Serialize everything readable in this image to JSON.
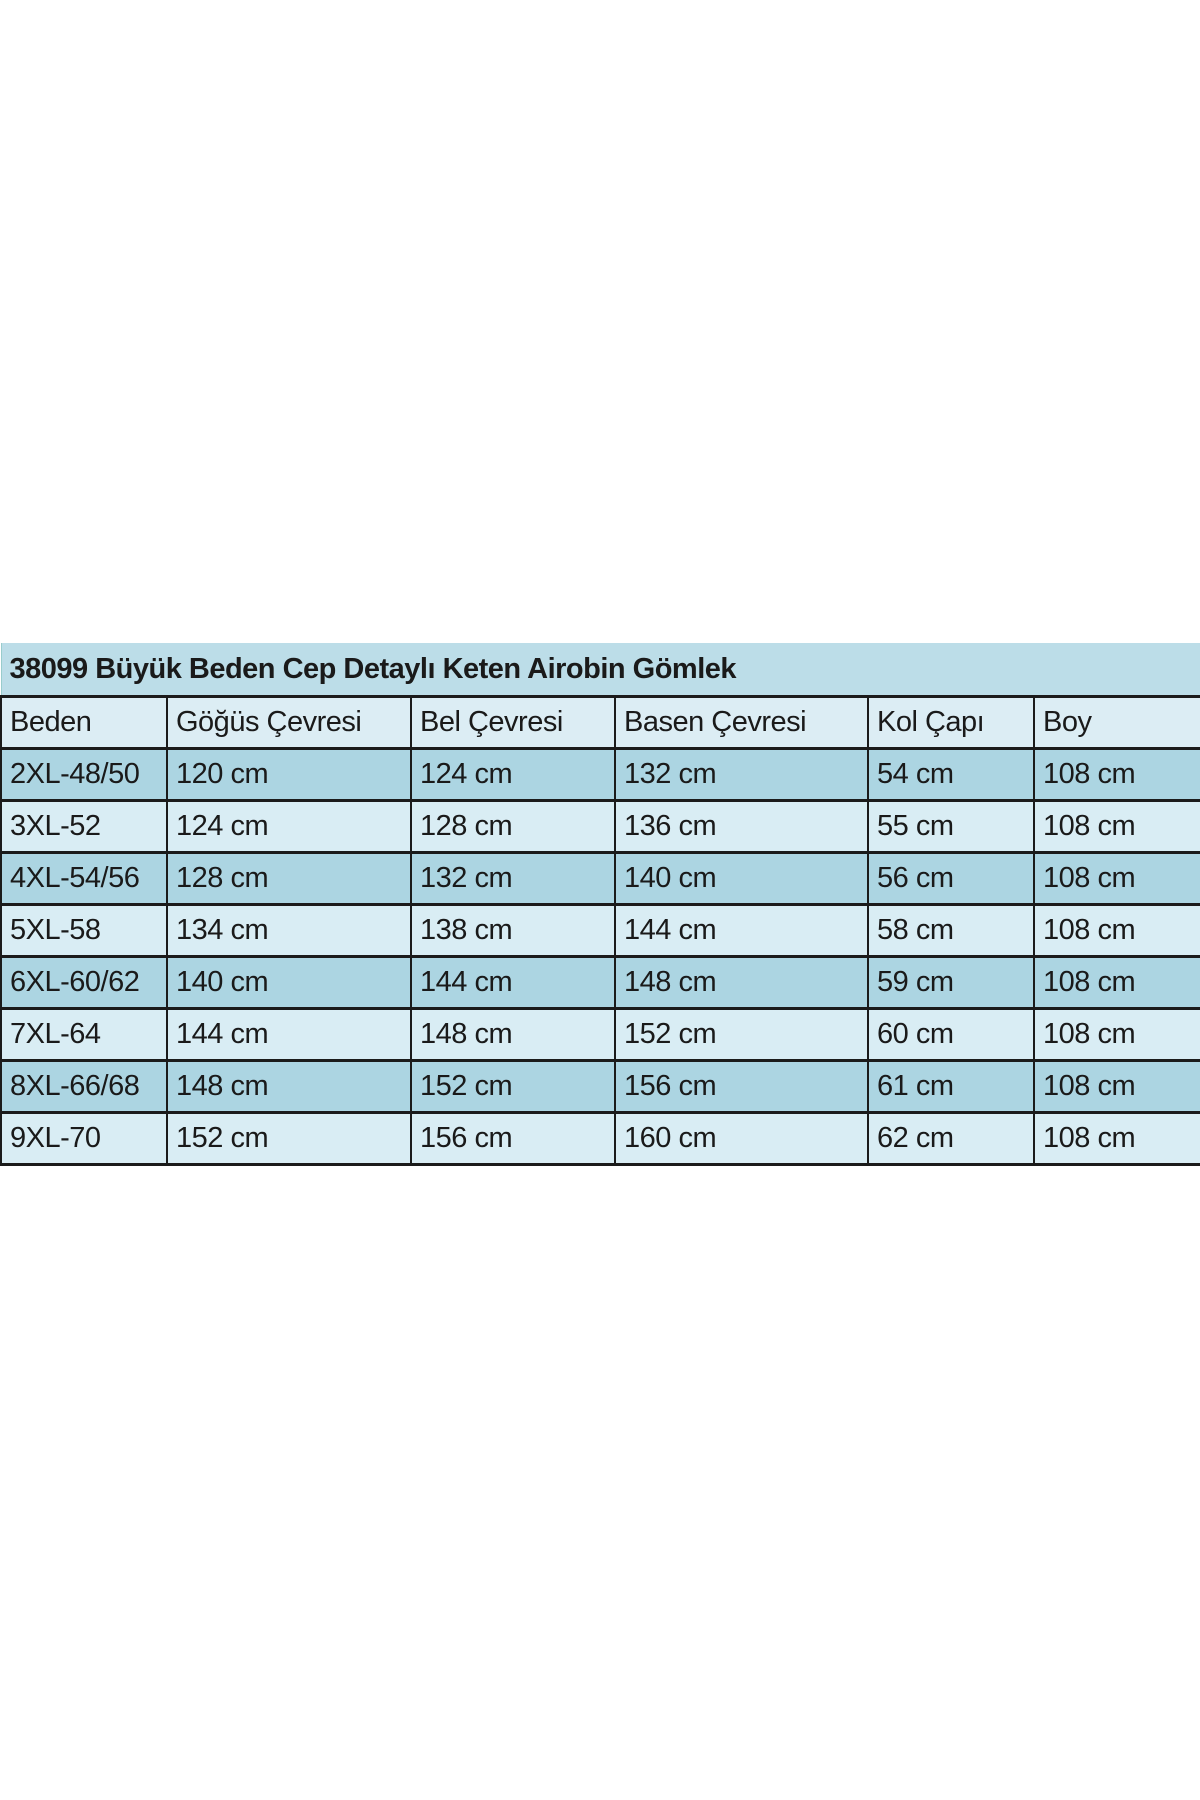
{
  "title": "38099 Büyük Beden Cep Detaylı Keten Airobin Gömlek",
  "columns": [
    "Beden",
    "Göğüs Çevresi",
    "Bel Çevresi",
    "Basen Çevresi",
    "Kol Çapı",
    "Boy"
  ],
  "rows": [
    [
      "2XL-48/50",
      "120 cm",
      "124 cm",
      "132 cm",
      "54 cm",
      "108 cm"
    ],
    [
      "3XL-52",
      "124 cm",
      "128 cm",
      "136 cm",
      "55 cm",
      "108 cm"
    ],
    [
      "4XL-54/56",
      "128 cm",
      "132 cm",
      "140 cm",
      "56 cm",
      "108 cm"
    ],
    [
      "5XL-58",
      "134 cm",
      "138 cm",
      "144 cm",
      "58 cm",
      "108 cm"
    ],
    [
      "6XL-60/62",
      "140 cm",
      "144 cm",
      "148 cm",
      "59 cm",
      "108 cm"
    ],
    [
      "7XL-64",
      "144 cm",
      "148 cm",
      "152 cm",
      "60 cm",
      "108 cm"
    ],
    [
      "8XL-66/68",
      "148 cm",
      "152 cm",
      "156 cm",
      "61 cm",
      "108 cm"
    ],
    [
      "9XL-70",
      "152 cm",
      "156 cm",
      "160 cm",
      "62 cm",
      "108 cm"
    ]
  ],
  "colors": {
    "title_bg": "#bcdde8",
    "header_bg": "#dcedf4",
    "row_dark": "#acd5e2",
    "row_light": "#d9edf4",
    "border": "#1b1b1b"
  }
}
